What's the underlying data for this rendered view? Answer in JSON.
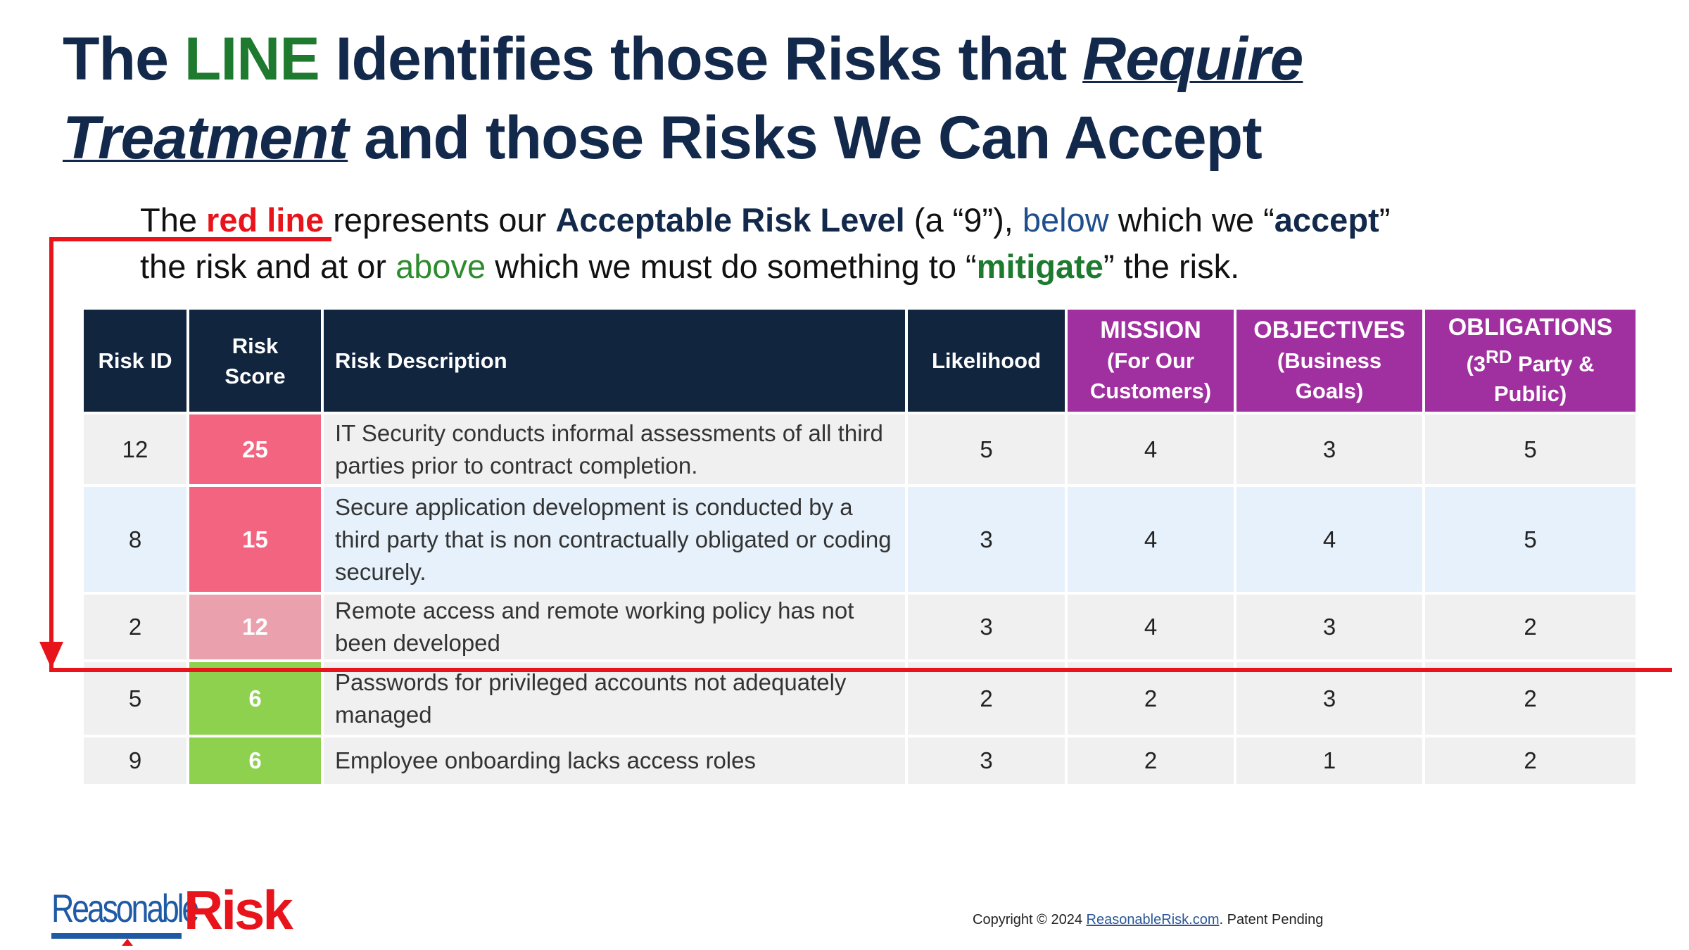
{
  "title": {
    "parts": [
      "The ",
      "LINE",
      " Identifies those Risks that ",
      "Require",
      "Treatment",
      " and those Risks We Can Accept"
    ]
  },
  "subtitle": {
    "parts": [
      "The ",
      "red line",
      " represents our ",
      "Acceptable Risk Level",
      " (a “9”), ",
      "below",
      " which we “",
      "accept",
      "”",
      "the risk and at or ",
      "above",
      " which we must do something to “",
      "mitigate",
      "” the risk."
    ]
  },
  "table": {
    "headers": [
      {
        "title": "Risk ID"
      },
      {
        "title": "Risk Score"
      },
      {
        "title": "Risk Description"
      },
      {
        "title": "Likelihood"
      },
      {
        "title": "MISSION",
        "sub": "(For Our Customers)"
      },
      {
        "title": "OBJECTIVES",
        "sub": "(Business Goals)"
      },
      {
        "title": "OBLIGATIONS",
        "sub": [
          "(3",
          "RD",
          " Party & Public)"
        ]
      }
    ],
    "rows": [
      [
        "12",
        "25",
        "IT Security conducts informal assessments of all third parties prior to contract completion.",
        "5",
        "4",
        "3",
        "5"
      ],
      [
        "8",
        "15",
        "Secure application development is conducted by a third party that is non contractually obligated or coding securely.",
        "3",
        "4",
        "4",
        "5"
      ],
      [
        "2",
        "12",
        "Remote access and remote working policy has not been developed",
        "3",
        "4",
        "3",
        "2"
      ],
      [
        "5",
        "6",
        "Passwords for privileged accounts not adequately managed",
        "2",
        "2",
        "3",
        "2"
      ],
      [
        "9",
        "6",
        "Employee onboarding lacks access roles",
        "3",
        "2",
        "1",
        "2"
      ]
    ]
  },
  "footer": {
    "logo": [
      "Reasonable",
      "Risk"
    ],
    "copyright": [
      "Copyright © 2024 ",
      "ReasonableRisk.com",
      ". Patent Pending"
    ]
  }
}
